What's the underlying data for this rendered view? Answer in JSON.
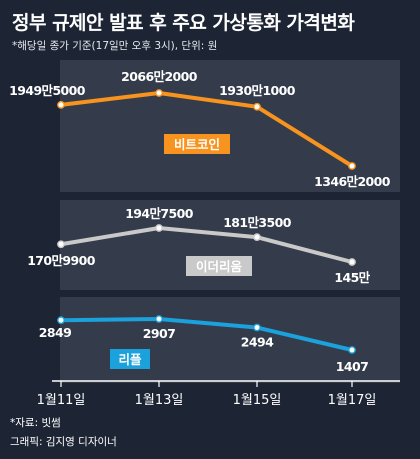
{
  "title": "정부 규제안 발표 후 주요 가상통화 가격변화",
  "subtitle": "*해당일 종가 기준(17일만 오후 3시), 단위: 원",
  "source": "*자료: 빗썸",
  "credit": "그래픽: 김지영 디자이너",
  "colors": {
    "background": "#1d2535",
    "panel": "#343c4c",
    "bitcoin": "#f7931e",
    "ethereum": "#c9c9c9",
    "ripple": "#1ba1dc",
    "marker_fill": "#ffffff"
  },
  "chart_data": {
    "type": "line",
    "categories": [
      "1월11일",
      "1월13일",
      "1월15일",
      "1월17일"
    ],
    "panels": [
      {
        "series": [
          {
            "name": "비트코인",
            "values": [
              19495000,
              20662000,
              19301000,
              13462000
            ],
            "labels": [
              "1949만5000",
              "2066만2000",
              "1930만1000",
              "1346만2000"
            ],
            "color": "#f7931e"
          }
        ]
      },
      {
        "series": [
          {
            "name": "이더리움",
            "values": [
              1709900,
              1947500,
              1813500,
              1450000
            ],
            "labels": [
              "170만9900",
              "194만7500",
              "181만3500",
              "145만"
            ],
            "color": "#c9c9c9"
          }
        ]
      },
      {
        "series": [
          {
            "name": "리플",
            "values": [
              2849,
              2907,
              2494,
              1407
            ],
            "labels": [
              "2849",
              "2907",
              "2494",
              "1407"
            ],
            "color": "#1ba1dc"
          }
        ]
      }
    ]
  }
}
